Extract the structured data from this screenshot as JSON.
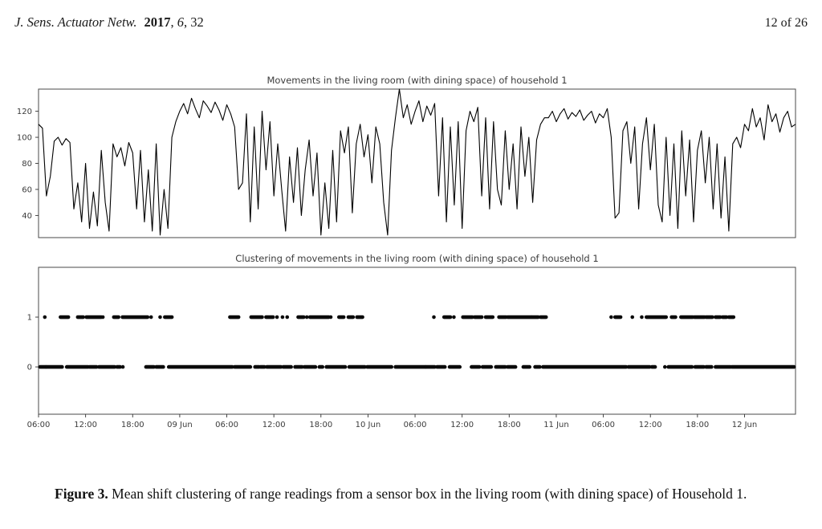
{
  "header": {
    "journal": "J. Sens. Actuator Netw.",
    "year": "2017",
    "comma1": ", ",
    "volume": "6",
    "comma2": ", 32",
    "page": "12 of 26"
  },
  "caption": {
    "label": "Figure 3.",
    "text": "Mean shift clustering of range readings from a sensor box in the living room (with dining space) of Household 1."
  },
  "chart_data": [
    {
      "type": "line",
      "title": "Movements in the living room (with dining space) of household 1",
      "ylabel": "",
      "xlabel": "",
      "ylim": [
        23,
        137
      ],
      "yticks": [
        40,
        60,
        80,
        100,
        120
      ],
      "xlim": [
        0,
        96.5
      ],
      "x_unit": "hours since 08 Jun 06:00",
      "x_start": 0,
      "x_step": 0.5,
      "line_color": "#000000",
      "grid": false,
      "values": [
        110,
        107,
        55,
        70,
        97,
        100,
        94,
        99,
        96,
        45,
        65,
        35,
        80,
        30,
        58,
        32,
        90,
        50,
        28,
        95,
        85,
        92,
        78,
        96,
        88,
        45,
        90,
        35,
        75,
        28,
        95,
        25,
        60,
        30,
        100,
        112,
        120,
        126,
        118,
        130,
        122,
        115,
        128,
        124,
        119,
        127,
        121,
        113,
        125,
        118,
        108,
        60,
        65,
        118,
        35,
        108,
        45,
        120,
        75,
        112,
        55,
        95,
        60,
        28,
        85,
        50,
        92,
        40,
        75,
        98,
        55,
        88,
        25,
        65,
        30,
        90,
        35,
        105,
        88,
        108,
        42,
        95,
        110,
        85,
        102,
        65,
        108,
        95,
        50,
        25,
        90,
        115,
        137,
        115,
        125,
        110,
        120,
        128,
        112,
        124,
        117,
        126,
        55,
        115,
        35,
        108,
        48,
        112,
        30,
        105,
        120,
        112,
        123,
        55,
        115,
        45,
        112,
        60,
        48,
        105,
        60,
        95,
        45,
        108,
        70,
        100,
        50,
        98,
        110,
        115,
        115,
        120,
        112,
        118,
        122,
        114,
        119,
        116,
        121,
        113,
        117,
        120,
        111,
        118,
        115,
        122,
        100,
        38,
        42,
        105,
        112,
        80,
        108,
        45,
        95,
        115,
        75,
        110,
        48,
        35,
        100,
        40,
        95,
        30,
        105,
        55,
        98,
        35,
        90,
        105,
        65,
        100,
        45,
        95,
        38,
        85,
        28,
        95,
        100,
        92,
        110,
        105,
        122,
        108,
        115,
        98,
        125,
        112,
        118,
        104,
        115,
        120,
        108,
        110
      ]
    },
    {
      "type": "scatter",
      "title": "Clustering of movements in the living room (with dining space) of household 1",
      "ylabel": "",
      "xlabel": "",
      "ylim": [
        -0.95,
        2.0
      ],
      "yticks": [
        0,
        1
      ],
      "xlim": [
        0,
        96.5
      ],
      "marker_color": "#0a0a0a",
      "grid": false,
      "xticks_hours": [
        0,
        6,
        12,
        18,
        24,
        30,
        36,
        42,
        48,
        54,
        60,
        66,
        72,
        78,
        84,
        90
      ],
      "xtick_labels": [
        "06:00",
        "12:00",
        "18:00",
        "09 Jun",
        "06:00",
        "12:00",
        "18:00",
        "10 Jun",
        "06:00",
        "12:00",
        "18:00",
        "11 Jun",
        "06:00",
        "12:00",
        "18:00",
        "12 Jun"
      ],
      "cluster_level_1_segments": [
        [
          0.7,
          0.9
        ],
        [
          2.8,
          3.8
        ],
        [
          5.0,
          5.7
        ],
        [
          6.1,
          8.0
        ],
        [
          8.1,
          8.3
        ],
        [
          9.6,
          10.2
        ],
        [
          10.7,
          13.9
        ],
        [
          14.2,
          14.5
        ],
        [
          15.4,
          15.6
        ],
        [
          16.1,
          17.0
        ],
        [
          24.4,
          25.5
        ],
        [
          27.1,
          28.5
        ],
        [
          29.0,
          29.9
        ],
        [
          30.3,
          30.5
        ],
        [
          31.0,
          31.2
        ],
        [
          31.6,
          31.8
        ],
        [
          33.1,
          33.8
        ],
        [
          34.1,
          34.3
        ],
        [
          34.6,
          37.0
        ],
        [
          37.2,
          37.3
        ],
        [
          38.3,
          38.9
        ],
        [
          39.5,
          40.1
        ],
        [
          40.6,
          41.3
        ],
        [
          50.3,
          50.5
        ],
        [
          51.7,
          52.5
        ],
        [
          52.8,
          53.1
        ],
        [
          54.1,
          55.3
        ],
        [
          55.6,
          56.5
        ],
        [
          57.0,
          57.9
        ],
        [
          58.7,
          59.6
        ],
        [
          59.8,
          62.8
        ],
        [
          62.9,
          63.7
        ],
        [
          64.0,
          64.7
        ],
        [
          72.9,
          73.1
        ],
        [
          73.5,
          74.2
        ],
        [
          75.6,
          75.8
        ],
        [
          76.8,
          77.0
        ],
        [
          77.5,
          80.0
        ],
        [
          80.7,
          81.2
        ],
        [
          81.9,
          83.4
        ],
        [
          83.6,
          84.9
        ],
        [
          85.1,
          85.9
        ],
        [
          86.3,
          86.9
        ],
        [
          87.2,
          87.7
        ],
        [
          88.0,
          88.6
        ]
      ],
      "cluster_level_0_segments": [
        [
          0.2,
          0.9
        ],
        [
          1.0,
          3.0
        ],
        [
          3.6,
          6.3
        ],
        [
          6.5,
          7.4
        ],
        [
          7.7,
          9.7
        ],
        [
          10.0,
          10.4
        ],
        [
          10.6,
          10.9
        ],
        [
          13.7,
          14.7
        ],
        [
          15.0,
          15.9
        ],
        [
          16.6,
          24.7
        ],
        [
          25.0,
          27.0
        ],
        [
          27.6,
          28.1
        ],
        [
          28.3,
          28.8
        ],
        [
          29.1,
          30.9
        ],
        [
          31.2,
          32.2
        ],
        [
          32.7,
          33.6
        ],
        [
          33.9,
          35.3
        ],
        [
          35.8,
          36.2
        ],
        [
          36.7,
          39.1
        ],
        [
          39.6,
          41.6
        ],
        [
          41.9,
          45.0
        ],
        [
          45.5,
          49.3
        ],
        [
          49.4,
          50.5
        ],
        [
          50.8,
          51.8
        ],
        [
          52.4,
          53.7
        ],
        [
          55.2,
          56.2
        ],
        [
          56.6,
          57.7
        ],
        [
          58.3,
          59.5
        ],
        [
          59.8,
          60.8
        ],
        [
          61.8,
          62.6
        ],
        [
          63.3,
          63.9
        ],
        [
          64.3,
          74.9
        ],
        [
          75.2,
          77.9
        ],
        [
          78.2,
          78.6
        ],
        [
          79.7,
          80.0
        ],
        [
          80.3,
          83.3
        ],
        [
          83.7,
          84.8
        ],
        [
          85.1,
          85.8
        ],
        [
          86.3,
          88.2
        ],
        [
          88.4,
          96.3
        ]
      ]
    }
  ]
}
